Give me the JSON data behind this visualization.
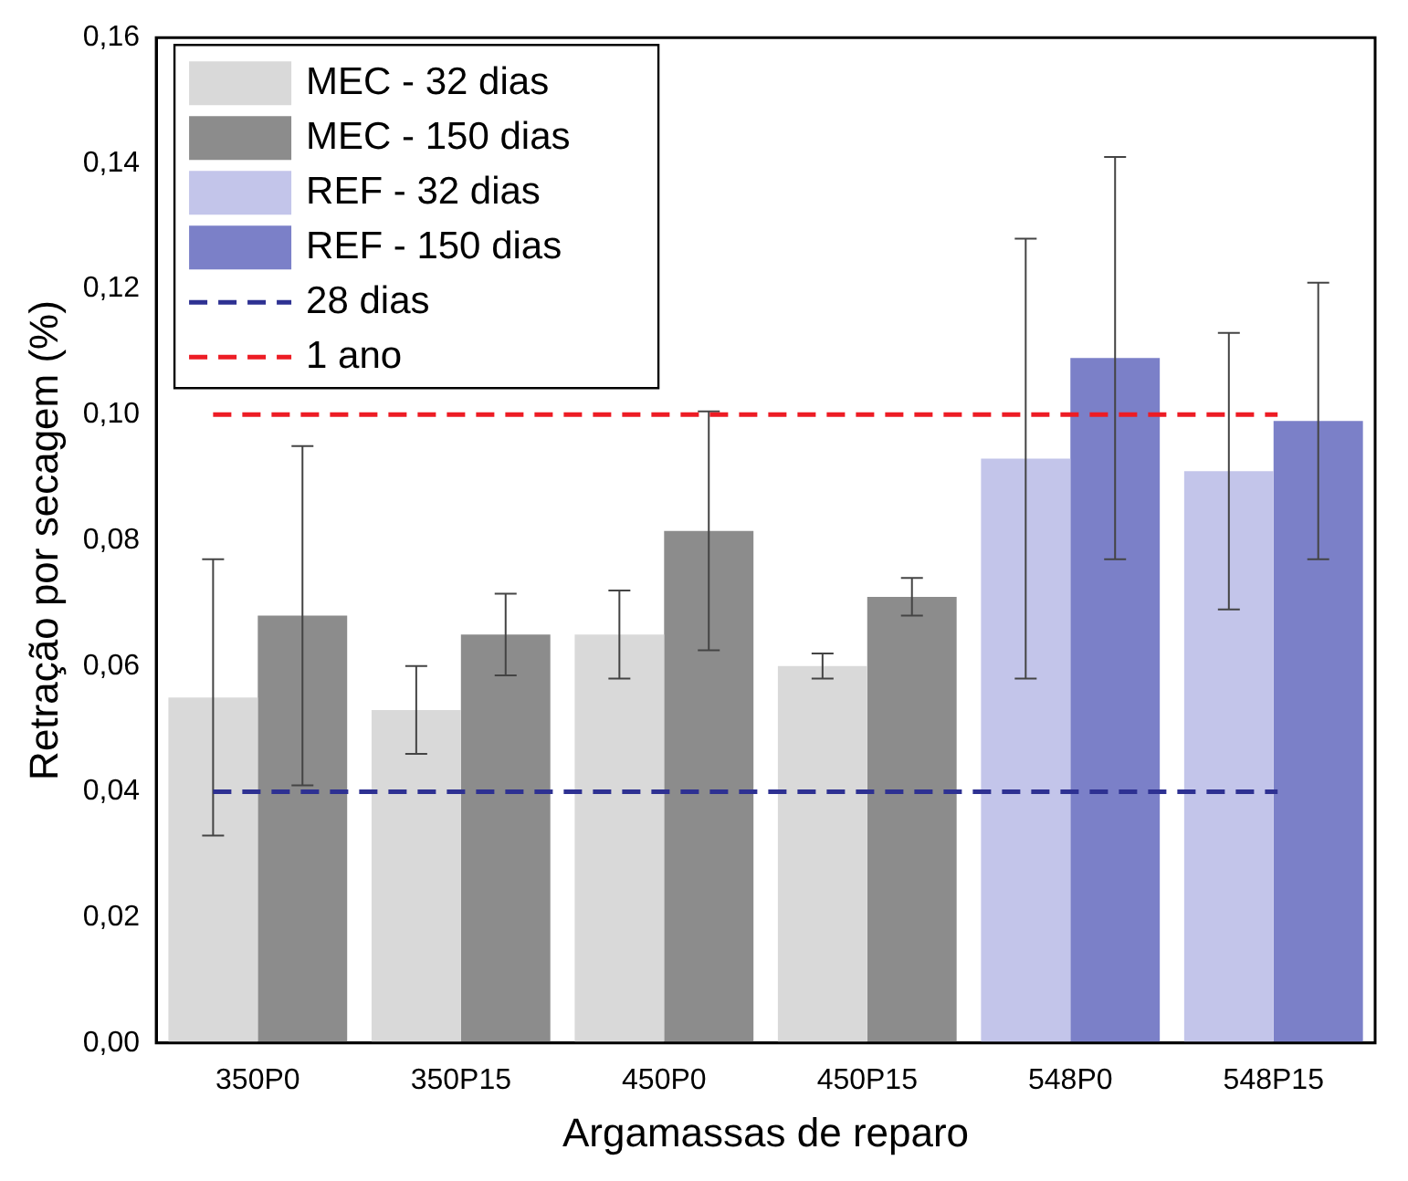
{
  "chart_data": {
    "type": "bar",
    "xlabel": "Argamassas de reparo",
    "ylabel": "Retração por secagem (%)",
    "categories": [
      "350P0",
      "350P15",
      "450P0",
      "450P15",
      "548P0",
      "548P15"
    ],
    "series": [
      {
        "name": "MEC - 32 dias",
        "color": "#d9d9d9",
        "values": [
          0.055,
          0.053,
          0.065,
          0.06,
          null,
          null
        ],
        "errors": [
          0.022,
          0.007,
          0.007,
          0.002,
          null,
          null
        ]
      },
      {
        "name": "MEC - 150 dias",
        "color": "#8c8c8c",
        "values": [
          0.068,
          0.065,
          0.0815,
          0.071,
          null,
          null
        ],
        "errors": [
          0.027,
          0.0065,
          0.019,
          0.003,
          null,
          null
        ]
      },
      {
        "name": "REF - 32 dias",
        "color": "#c3c5ea",
        "values": [
          null,
          null,
          null,
          null,
          0.093,
          0.091
        ],
        "errors": [
          null,
          null,
          null,
          null,
          0.035,
          0.022
        ]
      },
      {
        "name": "REF - 150 dias",
        "color": "#7b80c8",
        "values": [
          null,
          null,
          null,
          null,
          0.109,
          0.099
        ],
        "errors": [
          null,
          null,
          null,
          null,
          0.032,
          0.022
        ]
      }
    ],
    "ref_lines": [
      {
        "axis": "y",
        "value": 0.04,
        "label": "28 dias",
        "color": "#2e3192",
        "line_style": "dashed"
      },
      {
        "axis": "y",
        "value": 0.1,
        "label": "1 ano",
        "color": "#ed1c24",
        "line_style": "dashed"
      }
    ],
    "ylim": [
      0,
      0.16
    ],
    "yticks": [
      {
        "value": 0,
        "label": "0,00"
      },
      {
        "value": 0.02,
        "label": "0,02"
      },
      {
        "value": 0.04,
        "label": "0,04"
      },
      {
        "value": 0.06,
        "label": "0,06"
      },
      {
        "value": 0.08,
        "label": "0,08"
      },
      {
        "value": 0.1,
        "label": "0,10"
      },
      {
        "value": 0.12,
        "label": "0,12"
      },
      {
        "value": 0.14,
        "label": "0,14"
      },
      {
        "value": 0.16,
        "label": "0,16"
      }
    ],
    "legend": "top left",
    "grid": false
  }
}
